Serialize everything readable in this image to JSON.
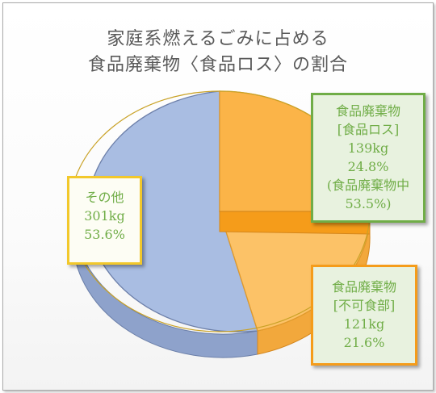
{
  "title_line1": "家庭系燃えるごみに占める",
  "title_line2": "食品廃棄物〈食品ロス〉の割合",
  "chart_data": {
    "type": "pie",
    "title": "家庭系燃えるごみに占める 食品廃棄物〈食品ロス〉の割合",
    "unit": "kg",
    "slices": [
      {
        "lines": [
          "食品廃棄物",
          "[食品ロス]",
          "139kg",
          "24.8%",
          "(食品廃棄物中",
          "53.5%)"
        ],
        "value": 139,
        "percent": 24.8,
        "color": "#fbb448"
      },
      {
        "lines": [
          "食品廃棄物",
          "[不可食部]",
          "121kg",
          "21.6%"
        ],
        "value": 121,
        "percent": 21.6,
        "color": "#fcc267"
      },
      {
        "lines": [
          "その他",
          "301kg",
          "53.6%"
        ],
        "value": 301,
        "percent": 53.6,
        "color": "#a9bde2"
      }
    ]
  },
  "colors": {
    "loss_border": "#70ad47",
    "inedible_border": "#f59c1a",
    "other_border": "#f2c82b",
    "label_text": "#70ad47"
  }
}
